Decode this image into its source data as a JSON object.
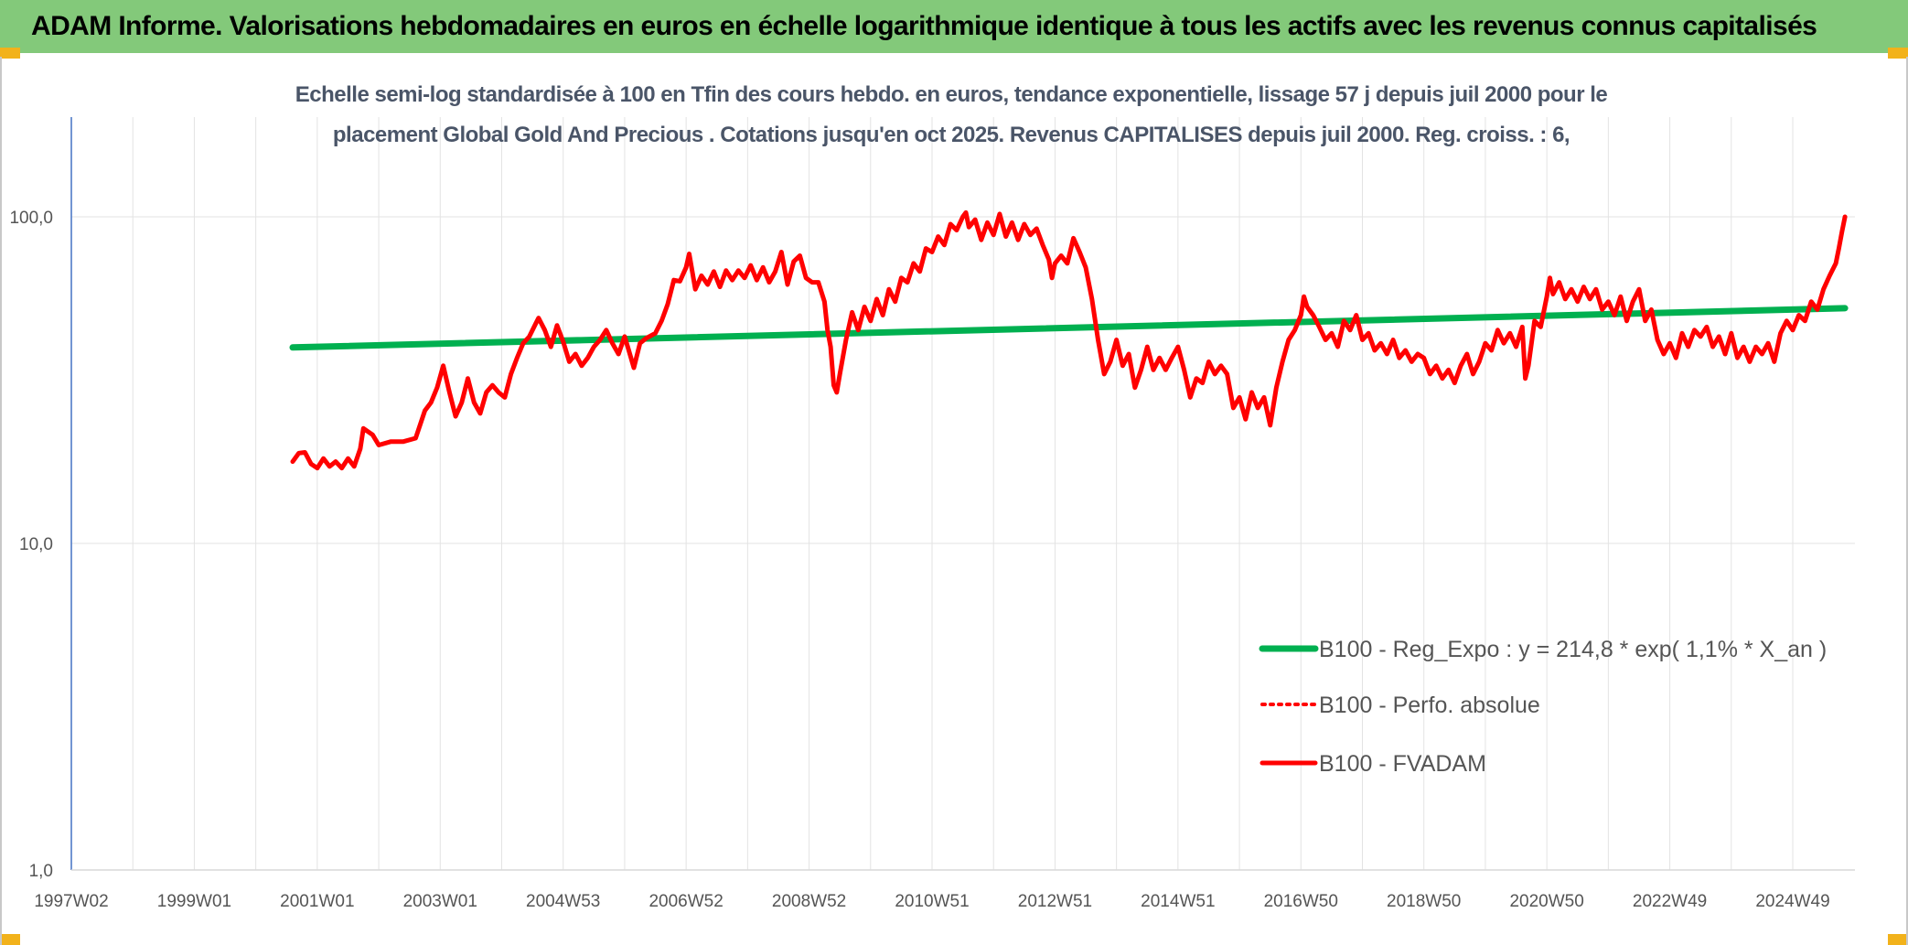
{
  "header": {
    "title": "ADAM Informe. Valorisations hebdomadaires en euros en échelle logarithmique identique à tous les actifs avec les revenus connus capitalisés"
  },
  "chart_data": {
    "type": "line",
    "title_line1": "Echelle semi-log standardisée à 100 en Tfin des cours hebdo. en euros, tendance exponentielle, lissage 57 j depuis juil 2000 pour le",
    "title_line2": "placement Global Gold And Precious . Cotations jusqu'en oct 2025. Revenus CAPITALISES depuis juil 2000. Reg. croiss. : 6,",
    "y_scale": "log",
    "ylim": [
      1,
      180
    ],
    "xlim": [
      1997.0,
      2025.85
    ],
    "y_ticks": [
      {
        "value": 1,
        "label": "1,0"
      },
      {
        "value": 10,
        "label": "10,0"
      },
      {
        "value": 100,
        "label": "100,0"
      }
    ],
    "x_ticks": [
      {
        "value": 1997.0,
        "label": "1997W02"
      },
      {
        "value": 1999.0,
        "label": "1999W01"
      },
      {
        "value": 2001.0,
        "label": "2001W01"
      },
      {
        "value": 2003.0,
        "label": "2003W01"
      },
      {
        "value": 2005.0,
        "label": "2004W53"
      },
      {
        "value": 2007.0,
        "label": "2006W52"
      },
      {
        "value": 2009.0,
        "label": "2008W52"
      },
      {
        "value": 2011.0,
        "label": "2010W51"
      },
      {
        "value": 2013.0,
        "label": "2012W51"
      },
      {
        "value": 2015.0,
        "label": "2014W51"
      },
      {
        "value": 2017.0,
        "label": "2016W50"
      },
      {
        "value": 2019.0,
        "label": "2018W50"
      },
      {
        "value": 2021.0,
        "label": "2020W50"
      },
      {
        "value": 2023.0,
        "label": "2022W49"
      },
      {
        "value": 2025.0,
        "label": "2024W49"
      }
    ],
    "grid": "vertical and horizontal",
    "legend_position": "bottom-right",
    "series": [
      {
        "name": "B100 - Reg_Expo : y = 214,8 * exp( 1,1% *  X_an )",
        "color": "#00b050",
        "style": "solid",
        "points": [
          [
            2000.6,
            39.8
          ],
          [
            2025.85,
            52.5
          ]
        ]
      },
      {
        "name": "B100 - Perfo. absolue",
        "color": "#ff0000",
        "style": "dotted",
        "points": []
      },
      {
        "name": "B100 - FVADAM",
        "color": "#ff0000",
        "style": "solid",
        "points": [
          [
            2000.6,
            17.8
          ],
          [
            2000.7,
            18.9
          ],
          [
            2000.8,
            19.0
          ],
          [
            2000.9,
            17.5
          ],
          [
            2001.0,
            17.0
          ],
          [
            2001.1,
            18.2
          ],
          [
            2001.2,
            17.2
          ],
          [
            2001.3,
            17.8
          ],
          [
            2001.4,
            17.0
          ],
          [
            2001.5,
            18.2
          ],
          [
            2001.6,
            17.2
          ],
          [
            2001.7,
            19.5
          ],
          [
            2001.75,
            22.5
          ],
          [
            2001.9,
            21.5
          ],
          [
            2002.0,
            20.0
          ],
          [
            2002.2,
            20.5
          ],
          [
            2002.4,
            20.5
          ],
          [
            2002.6,
            21.0
          ],
          [
            2002.75,
            25.5
          ],
          [
            2002.85,
            27.0
          ],
          [
            2002.95,
            30.0
          ],
          [
            2003.05,
            35.0
          ],
          [
            2003.15,
            29.0
          ],
          [
            2003.25,
            24.5
          ],
          [
            2003.35,
            27.0
          ],
          [
            2003.45,
            32.0
          ],
          [
            2003.55,
            27.0
          ],
          [
            2003.65,
            25.0
          ],
          [
            2003.75,
            29.0
          ],
          [
            2003.85,
            30.5
          ],
          [
            2003.95,
            29.0
          ],
          [
            2004.05,
            28.0
          ],
          [
            2004.15,
            33.0
          ],
          [
            2004.25,
            37.0
          ],
          [
            2004.35,
            41.0
          ],
          [
            2004.45,
            43.0
          ],
          [
            2004.55,
            47.0
          ],
          [
            2004.6,
            49.0
          ],
          [
            2004.7,
            45.0
          ],
          [
            2004.8,
            40.0
          ],
          [
            2004.9,
            46.5
          ],
          [
            2005.0,
            41.5
          ],
          [
            2005.1,
            36.0
          ],
          [
            2005.2,
            38.0
          ],
          [
            2005.3,
            35.0
          ],
          [
            2005.4,
            37.0
          ],
          [
            2005.5,
            40.0
          ],
          [
            2005.6,
            42.0
          ],
          [
            2005.7,
            45.0
          ],
          [
            2005.8,
            41.0
          ],
          [
            2005.9,
            38.0
          ],
          [
            2006.0,
            43.0
          ],
          [
            2006.05,
            40.0
          ],
          [
            2006.15,
            34.5
          ],
          [
            2006.25,
            41.0
          ],
          [
            2006.35,
            42.5
          ],
          [
            2006.5,
            44.0
          ],
          [
            2006.6,
            48.0
          ],
          [
            2006.7,
            54.0
          ],
          [
            2006.8,
            64.0
          ],
          [
            2006.9,
            63.5
          ],
          [
            2007.0,
            70.0
          ],
          [
            2007.05,
            77.0
          ],
          [
            2007.15,
            60.0
          ],
          [
            2007.25,
            66.0
          ],
          [
            2007.35,
            62.0
          ],
          [
            2007.45,
            68.0
          ],
          [
            2007.55,
            61.0
          ],
          [
            2007.65,
            68.5
          ],
          [
            2007.75,
            64.0
          ],
          [
            2007.85,
            68.5
          ],
          [
            2007.95,
            65.0
          ],
          [
            2008.05,
            71.0
          ],
          [
            2008.15,
            64.0
          ],
          [
            2008.25,
            70.0
          ],
          [
            2008.35,
            63.0
          ],
          [
            2008.45,
            68.0
          ],
          [
            2008.55,
            78.0
          ],
          [
            2008.65,
            62.0
          ],
          [
            2008.75,
            73.0
          ],
          [
            2008.85,
            76.0
          ],
          [
            2008.95,
            65.0
          ],
          [
            2009.05,
            63.0
          ],
          [
            2009.15,
            63.0
          ],
          [
            2009.25,
            55.0
          ],
          [
            2009.3,
            45.0
          ],
          [
            2009.35,
            40.0
          ],
          [
            2009.4,
            30.5
          ],
          [
            2009.45,
            29.0
          ],
          [
            2009.5,
            33.0
          ],
          [
            2009.6,
            42.0
          ],
          [
            2009.7,
            51.0
          ],
          [
            2009.8,
            45.0
          ],
          [
            2009.9,
            53.0
          ],
          [
            2010.0,
            48.0
          ],
          [
            2010.1,
            56.0
          ],
          [
            2010.2,
            50.0
          ],
          [
            2010.3,
            60.0
          ],
          [
            2010.4,
            55.0
          ],
          [
            2010.5,
            65.0
          ],
          [
            2010.6,
            63.0
          ],
          [
            2010.7,
            72.0
          ],
          [
            2010.8,
            68.0
          ],
          [
            2010.9,
            80.0
          ],
          [
            2011.0,
            78.0
          ],
          [
            2011.1,
            87.0
          ],
          [
            2011.2,
            82.0
          ],
          [
            2011.3,
            95.0
          ],
          [
            2011.4,
            91.0
          ],
          [
            2011.5,
            100.0
          ],
          [
            2011.55,
            103.0
          ],
          [
            2011.6,
            93.0
          ],
          [
            2011.7,
            98.0
          ],
          [
            2011.8,
            85.0
          ],
          [
            2011.9,
            96.0
          ],
          [
            2012.0,
            88.0
          ],
          [
            2012.1,
            102.0
          ],
          [
            2012.2,
            87.0
          ],
          [
            2012.3,
            96.0
          ],
          [
            2012.4,
            85.0
          ],
          [
            2012.5,
            95.0
          ],
          [
            2012.6,
            88.0
          ],
          [
            2012.7,
            92.0
          ],
          [
            2012.8,
            82.0
          ],
          [
            2012.9,
            74.0
          ],
          [
            2012.95,
            65.0
          ],
          [
            2013.0,
            72.0
          ],
          [
            2013.1,
            76.0
          ],
          [
            2013.2,
            72.0
          ],
          [
            2013.3,
            86.0
          ],
          [
            2013.4,
            78.0
          ],
          [
            2013.5,
            70.0
          ],
          [
            2013.6,
            56.0
          ],
          [
            2013.7,
            42.0
          ],
          [
            2013.8,
            33.0
          ],
          [
            2013.9,
            36.0
          ],
          [
            2014.0,
            42.0
          ],
          [
            2014.1,
            35.0
          ],
          [
            2014.2,
            38.0
          ],
          [
            2014.3,
            30.0
          ],
          [
            2014.4,
            34.0
          ],
          [
            2014.5,
            40.0
          ],
          [
            2014.6,
            34.0
          ],
          [
            2014.7,
            37.0
          ],
          [
            2014.8,
            34.0
          ],
          [
            2014.9,
            37.0
          ],
          [
            2015.0,
            40.0
          ],
          [
            2015.1,
            34.0
          ],
          [
            2015.2,
            28.0
          ],
          [
            2015.3,
            32.0
          ],
          [
            2015.4,
            31.0
          ],
          [
            2015.5,
            36.0
          ],
          [
            2015.6,
            33.0
          ],
          [
            2015.7,
            35.0
          ],
          [
            2015.8,
            33.0
          ],
          [
            2015.9,
            26.0
          ],
          [
            2016.0,
            28.0
          ],
          [
            2016.1,
            24.0
          ],
          [
            2016.2,
            29.0
          ],
          [
            2016.3,
            26.0
          ],
          [
            2016.4,
            28.0
          ],
          [
            2016.5,
            23.0
          ],
          [
            2016.6,
            30.0
          ],
          [
            2016.7,
            36.0
          ],
          [
            2016.8,
            42.0
          ],
          [
            2016.9,
            45.0
          ],
          [
            2017.0,
            50.0
          ],
          [
            2017.05,
            57.0
          ],
          [
            2017.1,
            53.0
          ],
          [
            2017.2,
            50.0
          ],
          [
            2017.3,
            46.0
          ],
          [
            2017.4,
            42.0
          ],
          [
            2017.5,
            44.0
          ],
          [
            2017.6,
            40.0
          ],
          [
            2017.7,
            48.0
          ],
          [
            2017.8,
            45.0
          ],
          [
            2017.9,
            50.0
          ],
          [
            2018.0,
            42.0
          ],
          [
            2018.1,
            44.0
          ],
          [
            2018.2,
            39.0
          ],
          [
            2018.3,
            41.0
          ],
          [
            2018.4,
            38.0
          ],
          [
            2018.5,
            42.0
          ],
          [
            2018.6,
            37.0
          ],
          [
            2018.7,
            39.0
          ],
          [
            2018.8,
            36.0
          ],
          [
            2018.9,
            38.0
          ],
          [
            2019.0,
            37.0
          ],
          [
            2019.1,
            33.0
          ],
          [
            2019.2,
            35.0
          ],
          [
            2019.3,
            32.0
          ],
          [
            2019.4,
            34.0
          ],
          [
            2019.5,
            31.0
          ],
          [
            2019.6,
            35.0
          ],
          [
            2019.7,
            38.0
          ],
          [
            2019.8,
            33.0
          ],
          [
            2019.9,
            36.0
          ],
          [
            2020.0,
            41.0
          ],
          [
            2020.1,
            39.0
          ],
          [
            2020.2,
            45.0
          ],
          [
            2020.3,
            41.0
          ],
          [
            2020.4,
            44.0
          ],
          [
            2020.5,
            40.0
          ],
          [
            2020.6,
            46.0
          ],
          [
            2020.65,
            32.0
          ],
          [
            2020.7,
            35.0
          ],
          [
            2020.8,
            48.0
          ],
          [
            2020.9,
            46.0
          ],
          [
            2021.0,
            57.0
          ],
          [
            2021.05,
            65.0
          ],
          [
            2021.1,
            58.0
          ],
          [
            2021.2,
            63.0
          ],
          [
            2021.3,
            56.0
          ],
          [
            2021.4,
            60.0
          ],
          [
            2021.5,
            55.0
          ],
          [
            2021.6,
            61.0
          ],
          [
            2021.7,
            56.0
          ],
          [
            2021.8,
            60.0
          ],
          [
            2021.9,
            52.0
          ],
          [
            2022.0,
            55.0
          ],
          [
            2022.1,
            50.0
          ],
          [
            2022.2,
            57.0
          ],
          [
            2022.3,
            48.0
          ],
          [
            2022.4,
            55.0
          ],
          [
            2022.5,
            60.0
          ],
          [
            2022.6,
            48.0
          ],
          [
            2022.7,
            52.0
          ],
          [
            2022.8,
            42.0
          ],
          [
            2022.9,
            38.0
          ],
          [
            2023.0,
            41.0
          ],
          [
            2023.1,
            37.0
          ],
          [
            2023.2,
            44.0
          ],
          [
            2023.3,
            40.0
          ],
          [
            2023.4,
            45.0
          ],
          [
            2023.5,
            43.0
          ],
          [
            2023.6,
            46.0
          ],
          [
            2023.7,
            40.0
          ],
          [
            2023.8,
            43.0
          ],
          [
            2023.9,
            38.0
          ],
          [
            2024.0,
            44.0
          ],
          [
            2024.1,
            37.0
          ],
          [
            2024.2,
            40.0
          ],
          [
            2024.3,
            36.0
          ],
          [
            2024.4,
            40.0
          ],
          [
            2024.5,
            38.0
          ],
          [
            2024.6,
            41.0
          ],
          [
            2024.7,
            36.0
          ],
          [
            2024.8,
            44.0
          ],
          [
            2024.9,
            48.0
          ],
          [
            2025.0,
            45.0
          ],
          [
            2025.1,
            50.0
          ],
          [
            2025.2,
            48.0
          ],
          [
            2025.3,
            55.0
          ],
          [
            2025.4,
            52.0
          ],
          [
            2025.5,
            60.0
          ],
          [
            2025.6,
            66.0
          ],
          [
            2025.7,
            72.0
          ],
          [
            2025.75,
            80.0
          ],
          [
            2025.8,
            90.0
          ],
          [
            2025.85,
            100.0
          ]
        ]
      }
    ]
  }
}
